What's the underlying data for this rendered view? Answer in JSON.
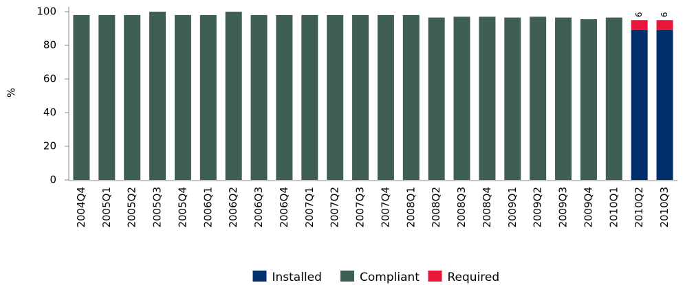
{
  "chart_data": {
    "type": "stacked_bar",
    "y_label": "%",
    "categories": [
      "2004Q4",
      "2005Q1",
      "2005Q2",
      "2005Q3",
      "2005Q4",
      "2006Q1",
      "2006Q2",
      "2006Q3",
      "2006Q4",
      "2007Q1",
      "2007Q2",
      "2007Q3",
      "2007Q4",
      "2008Q1",
      "2008Q2",
      "2008Q3",
      "2008Q4",
      "2009Q1",
      "2009Q2",
      "2009Q3",
      "2009Q4",
      "2010Q1",
      "2010Q2",
      "2010Q3"
    ],
    "series": [
      {
        "name": "Installed",
        "color": "#002f6c",
        "values": [
          0,
          0,
          0,
          0,
          0,
          0,
          0,
          0,
          0,
          0,
          0,
          0,
          0,
          0,
          0,
          0,
          0,
          0,
          0,
          0,
          0,
          0,
          89,
          89
        ]
      },
      {
        "name": "Compliant",
        "color": "#3f5f54",
        "values": [
          98,
          98,
          98,
          100,
          98,
          98,
          100,
          98,
          98,
          98,
          98,
          98,
          98,
          98,
          96.5,
          97,
          97,
          96.5,
          97,
          96.5,
          95.5,
          96.5,
          0,
          0
        ]
      },
      {
        "name": "Required",
        "color": "#e8173a",
        "values": [
          0,
          0,
          0,
          0,
          0,
          0,
          0,
          0,
          0,
          0,
          0,
          0,
          0,
          0,
          0,
          0,
          0,
          0,
          0,
          0,
          0,
          0,
          6,
          6
        ]
      }
    ],
    "ylim": [
      0,
      100
    ],
    "yticks": [
      0,
      20,
      40,
      60,
      80,
      100
    ]
  }
}
